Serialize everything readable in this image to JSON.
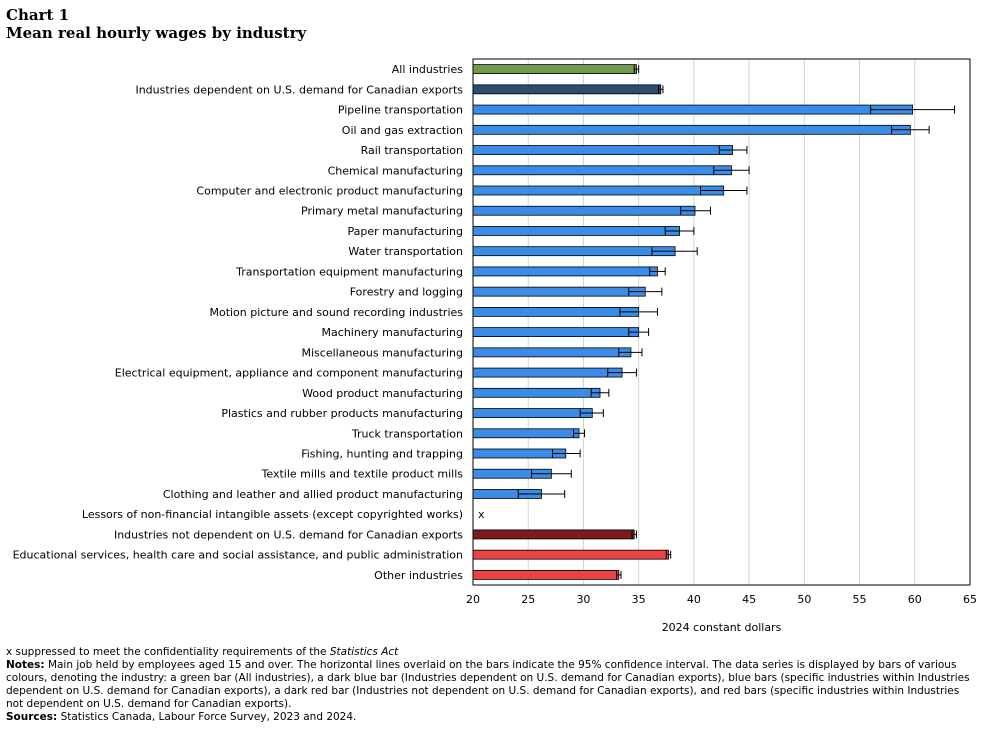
{
  "chart_label": "Chart 1",
  "chart_title": "Mean real hourly wages by industry",
  "colors": {
    "green": "#6e9b4e",
    "dark_blue": "#2b4d70",
    "blue": "#3a8ce6",
    "dark_red": "#7d1c1c",
    "red": "#ea4245",
    "grid": "#d4d4d4"
  },
  "chart_data": {
    "type": "bar",
    "orientation": "horizontal",
    "title": "Mean real hourly wages by industry",
    "xlabel": "2024 constant dollars",
    "ylabel": "",
    "xlim": [
      20,
      65
    ],
    "xticks": [
      20,
      25,
      30,
      35,
      40,
      45,
      50,
      55,
      60,
      65
    ],
    "grid": true,
    "categories": [
      "All industries",
      "Industries dependent on U.S. demand for Canadian exports",
      "Pipeline transportation",
      "Oil and gas extraction",
      "Rail transportation",
      "Chemical manufacturing",
      "Computer and electronic product manufacturing",
      "Primary metal manufacturing",
      "Paper manufacturing",
      "Water transportation",
      "Transportation equipment manufacturing",
      "Forestry and logging",
      "Motion picture and sound recording industries",
      "Machinery manufacturing",
      "Miscellaneous manufacturing",
      "Electrical equipment, appliance and component manufacturing",
      "Wood product manufacturing",
      "Plastics and rubber products manufacturing",
      "Truck transportation",
      "Fishing, hunting and trapping",
      "Textile mills and textile product mills",
      "Clothing and leather and allied product manufacturing",
      "Lessors of non-financial intangible assets (except copyrighted works)",
      "Industries not dependent on U.S. demand for Canadian exports",
      "Educational services, health care and social assistance, and public administration",
      "Other industries"
    ],
    "values": [
      34.8,
      37.0,
      59.8,
      59.6,
      43.5,
      43.4,
      42.7,
      40.1,
      38.7,
      38.3,
      36.7,
      35.6,
      35.0,
      35.0,
      34.3,
      33.5,
      31.5,
      30.8,
      29.6,
      28.4,
      27.1,
      26.2,
      null,
      34.6,
      37.7,
      33.2
    ],
    "ci_low": [
      34.6,
      36.8,
      56.0,
      57.9,
      42.3,
      41.8,
      40.6,
      38.8,
      37.4,
      36.2,
      36.0,
      34.1,
      33.3,
      34.1,
      33.2,
      32.2,
      30.7,
      29.7,
      29.1,
      27.2,
      25.3,
      24.1,
      null,
      34.4,
      37.5,
      33.0
    ],
    "ci_high": [
      35.0,
      37.2,
      63.6,
      61.3,
      44.8,
      45.0,
      44.8,
      41.5,
      40.0,
      40.3,
      37.4,
      37.1,
      36.7,
      35.9,
      35.3,
      34.8,
      32.3,
      31.8,
      30.1,
      29.7,
      28.9,
      28.3,
      null,
      34.8,
      37.9,
      33.4
    ],
    "bar_colors": [
      "green",
      "dark_blue",
      "blue",
      "blue",
      "blue",
      "blue",
      "blue",
      "blue",
      "blue",
      "blue",
      "blue",
      "blue",
      "blue",
      "blue",
      "blue",
      "blue",
      "blue",
      "blue",
      "blue",
      "blue",
      "blue",
      "blue",
      "blue",
      "dark_red",
      "red",
      "red"
    ],
    "suppressed_marker": "x"
  },
  "footnote": {
    "suppressed_text": "x suppressed to meet the confidentiality requirements of the ",
    "suppressed_act": "Statistics Act",
    "notes_label": "Notes:",
    "notes_text": "Main job held by employees aged 15 and over. The horizontal lines overlaid on the bars indicate the 95% confidence interval. The data series is displayed by bars of various colours, denoting the industry: a green bar (All industries), a dark blue bar (Industries dependent on U.S. demand for Canadian exports), blue bars (specific industries within Industries dependent on U.S. demand for Canadian exports), a dark red bar (Industries not dependent on U.S. demand for Canadian exports), and red bars (specific industries within Industries not dependent on U.S. demand for Canadian exports).",
    "sources_label": "Sources:",
    "sources_text": "Statistics Canada, Labour Force Survey, 2023 and 2024."
  }
}
